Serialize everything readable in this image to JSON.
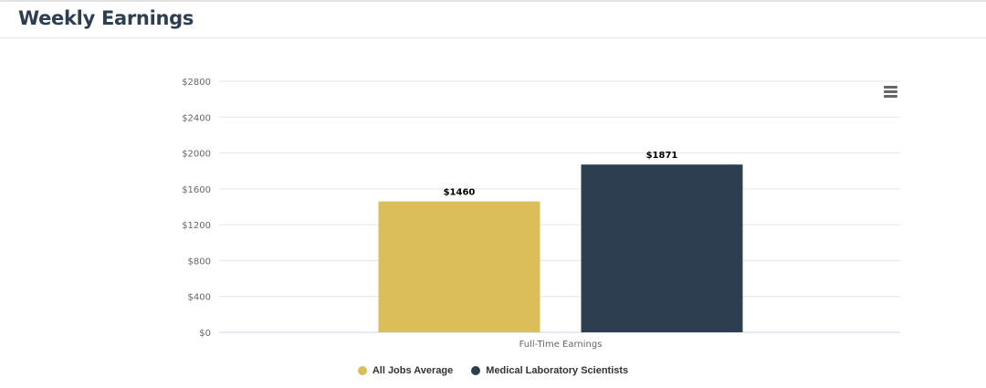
{
  "header": {
    "title": "Weekly Earnings"
  },
  "chart_data": {
    "type": "bar",
    "title": "",
    "xlabel": "",
    "ylabel": "",
    "categories": [
      "Full-Time Earnings"
    ],
    "series": [
      {
        "name": "All Jobs Average",
        "values": [
          1460
        ],
        "color": "#dbbe5a"
      },
      {
        "name": "Medical Laboratory Scientists",
        "values": [
          1871
        ],
        "color": "#2c3e50"
      }
    ],
    "data_labels": [
      "$1460",
      "$1871"
    ],
    "ylim": [
      0,
      2800
    ],
    "y_ticks": [
      0,
      400,
      800,
      1200,
      1600,
      2000,
      2400,
      2800
    ],
    "y_tick_labels": [
      "$0",
      "$400",
      "$800",
      "$1200",
      "$1600",
      "$2000",
      "$2400",
      "$2800"
    ],
    "grid": true,
    "legend_position": "bottom-center"
  },
  "menu": {
    "icon": "hamburger-menu-icon"
  }
}
